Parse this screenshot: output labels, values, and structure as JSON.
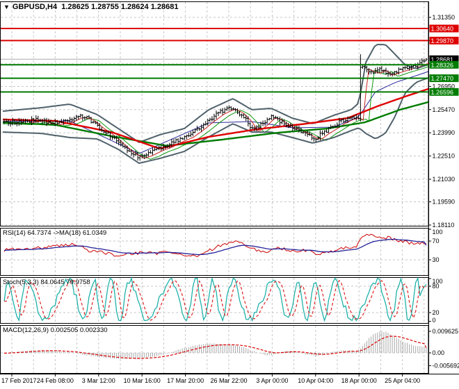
{
  "window": {
    "dropdown_icon": "▼",
    "symbol_period": "GBPUSD,H4",
    "ohlc_text": "1.28625 1.28755 1.28624 1.28681"
  },
  "colors": {
    "background": "#ffffff",
    "panel_border": "#000000",
    "grid": "#c6c6c6",
    "resistance": "#dd0000",
    "support": "#007c00",
    "bid_line": "#a8a8a8",
    "bid_label_bg": "#000000",
    "label_text": "#ffffff",
    "axis_text": "#000000",
    "candle": "#000000",
    "bollinger": "#4f616b",
    "bb_mid": "#2a2a9a",
    "fast_ma_red": "#cc2222",
    "fast_ma_green": "#119911",
    "ma_red": "#e00000",
    "ma_green": "#007c00",
    "rsi_line": "#cc0000",
    "rsi_ma": "#22229a",
    "stoch_k": "#20b2aa",
    "stoch_d": "#dd2222",
    "macd_hist": "#a8a8a8",
    "macd_signal": "#dd0000"
  },
  "chart_data": {
    "type": "candlestick",
    "title": "GBPUSD,H4",
    "current_ohlc": {
      "open": 1.28625,
      "high": 1.28755,
      "low": 1.28624,
      "close": 1.28681
    },
    "x_labels": [
      "17 Feb 2017",
      "24 Feb 08:00",
      "3 Mar 12:00",
      "10 Mar 16:00",
      "17 Mar 20:00",
      "26 Mar 22:00",
      "3 Apr 00:00",
      "10 Apr 04:00",
      "18 Apr 00:00",
      "25 Apr 04:00"
    ],
    "main": {
      "y_ticks": [
        {
          "price": 1.3135,
          "label": "1.31350"
        },
        {
          "price": 1.2987,
          "label": null
        },
        {
          "price": 1.2839,
          "label": null
        },
        {
          "price": 1.2695,
          "label": "1.26950"
        },
        {
          "price": 1.2547,
          "label": "1.25470"
        },
        {
          "price": 1.2399,
          "label": "1.23990"
        },
        {
          "price": 1.2251,
          "label": "1.22510"
        },
        {
          "price": 1.2103,
          "label": "1.21030"
        },
        {
          "price": 1.1959,
          "label": "1.19590"
        },
        {
          "price": 1.1811,
          "label": "1.18110"
        }
      ],
      "resistance_levels": [
        {
          "price": 1.3064,
          "label": "1.30640"
        },
        {
          "price": 1.2987,
          "label": "1.29870"
        }
      ],
      "support_levels": [
        {
          "price": 1.28326,
          "label": "1.28326"
        },
        {
          "price": 1.2747,
          "label": "1.27470"
        },
        {
          "price": 1.26596,
          "label": "1.26596"
        }
      ],
      "bid": {
        "price": 1.28681,
        "label": "1.28681"
      },
      "close_path": [
        [
          4,
          1.2471
        ],
        [
          30,
          1.2466
        ],
        [
          55,
          1.2484
        ],
        [
          75,
          1.2457
        ],
        [
          95,
          1.2471
        ],
        [
          112,
          1.2506
        ],
        [
          126,
          1.2493
        ],
        [
          140,
          1.244
        ],
        [
          155,
          1.2395
        ],
        [
          170,
          1.2338
        ],
        [
          185,
          1.228
        ],
        [
          200,
          1.2245
        ],
        [
          212,
          1.2263
        ],
        [
          226,
          1.2294
        ],
        [
          240,
          1.2316
        ],
        [
          255,
          1.2351
        ],
        [
          270,
          1.2378
        ],
        [
          285,
          1.2426
        ],
        [
          300,
          1.248
        ],
        [
          315,
          1.2528
        ],
        [
          330,
          1.2559
        ],
        [
          342,
          1.2533
        ],
        [
          354,
          1.248
        ],
        [
          364,
          1.2413
        ],
        [
          376,
          1.2453
        ],
        [
          388,
          1.2502
        ],
        [
          398,
          1.2489
        ],
        [
          408,
          1.2457
        ],
        [
          420,
          1.2431
        ],
        [
          432,
          1.2413
        ],
        [
          444,
          1.2382
        ],
        [
          454,
          1.2364
        ],
        [
          464,
          1.2399
        ],
        [
          476,
          1.2431
        ],
        [
          488,
          1.2466
        ],
        [
          500,
          1.2493
        ],
        [
          510,
          1.2502
        ],
        [
          516,
          1.248
        ],
        [
          520,
          1.2816
        ],
        [
          528,
          1.2803
        ],
        [
          538,
          1.2785
        ],
        [
          548,
          1.2807
        ],
        [
          556,
          1.2772
        ],
        [
          566,
          1.2789
        ],
        [
          576,
          1.2803
        ],
        [
          586,
          1.2816
        ],
        [
          596,
          1.2829
        ],
        [
          606,
          1.2847
        ],
        [
          616,
          1.28681
        ]
      ],
      "spike": {
        "x": 518,
        "open": 1.2489,
        "close": 1.2816,
        "high": 1.29,
        "low": 1.2471
      },
      "bb_upper": [
        [
          4,
          1.2537
        ],
        [
          60,
          1.2559
        ],
        [
          100,
          1.2582
        ],
        [
          140,
          1.2515
        ],
        [
          170,
          1.2426
        ],
        [
          200,
          1.2338
        ],
        [
          230,
          1.2387
        ],
        [
          265,
          1.2426
        ],
        [
          300,
          1.2546
        ],
        [
          335,
          1.2617
        ],
        [
          362,
          1.2546
        ],
        [
          390,
          1.2555
        ],
        [
          420,
          1.2493
        ],
        [
          450,
          1.2457
        ],
        [
          480,
          1.2511
        ],
        [
          505,
          1.2546
        ],
        [
          516,
          1.259
        ],
        [
          526,
          1.2847
        ],
        [
          540,
          1.2962
        ],
        [
          554,
          1.2962
        ],
        [
          568,
          1.29
        ],
        [
          582,
          1.2834
        ],
        [
          598,
          1.2807
        ],
        [
          616,
          1.2834
        ]
      ],
      "bb_lower": [
        [
          4,
          1.2404
        ],
        [
          60,
          1.2395
        ],
        [
          100,
          1.2369
        ],
        [
          140,
          1.236
        ],
        [
          170,
          1.2294
        ],
        [
          200,
          1.2205
        ],
        [
          230,
          1.2236
        ],
        [
          265,
          1.228
        ],
        [
          300,
          1.2373
        ],
        [
          335,
          1.2457
        ],
        [
          362,
          1.2404
        ],
        [
          390,
          1.2404
        ],
        [
          420,
          1.2369
        ],
        [
          450,
          1.2333
        ],
        [
          480,
          1.2369
        ],
        [
          505,
          1.2413
        ],
        [
          516,
          1.2431
        ],
        [
          526,
          1.2395
        ],
        [
          540,
          1.236
        ],
        [
          554,
          1.2395
        ],
        [
          568,
          1.2502
        ],
        [
          582,
          1.265
        ],
        [
          598,
          1.272
        ],
        [
          616,
          1.275
        ]
      ],
      "bb_mid": [
        [
          4,
          1.2471
        ],
        [
          100,
          1.2475
        ],
        [
          200,
          1.2267
        ],
        [
          300,
          1.2462
        ],
        [
          362,
          1.2471
        ],
        [
          420,
          1.2431
        ],
        [
          480,
          1.2435
        ],
        [
          516,
          1.2502
        ],
        [
          540,
          1.2661
        ],
        [
          568,
          1.2719
        ],
        [
          598,
          1.2763
        ],
        [
          616,
          1.279
        ]
      ],
      "ma_red": [
        [
          4,
          1.2484
        ],
        [
          80,
          1.2475
        ],
        [
          160,
          1.2404
        ],
        [
          230,
          1.2298
        ],
        [
          300,
          1.2373
        ],
        [
          370,
          1.2422
        ],
        [
          440,
          1.2457
        ],
        [
          500,
          1.2493
        ],
        [
          545,
          1.2572
        ],
        [
          585,
          1.2634
        ],
        [
          616,
          1.2679
        ]
      ],
      "ma_green": [
        [
          4,
          1.2466
        ],
        [
          80,
          1.2449
        ],
        [
          160,
          1.2378
        ],
        [
          240,
          1.2316
        ],
        [
          320,
          1.2356
        ],
        [
          400,
          1.24
        ],
        [
          470,
          1.2426
        ],
        [
          525,
          1.2466
        ],
        [
          575,
          1.2546
        ],
        [
          616,
          1.2595
        ]
      ]
    },
    "rsi": {
      "label": "RSI(14) 64.7374  ->MA(18) 61.0349",
      "value": 64.7374,
      "ma_value": 61.0349,
      "levels": [
        70,
        30
      ],
      "scale_labels": [
        {
          "v": 100,
          "label": "100"
        },
        {
          "v": 70,
          "label": "70"
        },
        {
          "v": 30,
          "label": "30"
        }
      ],
      "path": [
        [
          4,
          50
        ],
        [
          30,
          54
        ],
        [
          60,
          55
        ],
        [
          90,
          62
        ],
        [
          110,
          64
        ],
        [
          125,
          50
        ],
        [
          145,
          48
        ],
        [
          165,
          40
        ],
        [
          185,
          42
        ],
        [
          205,
          46
        ],
        [
          225,
          44
        ],
        [
          245,
          46
        ],
        [
          265,
          40
        ],
        [
          280,
          37
        ],
        [
          300,
          50
        ],
        [
          320,
          62
        ],
        [
          335,
          70
        ],
        [
          350,
          64
        ],
        [
          365,
          52
        ],
        [
          380,
          46
        ],
        [
          395,
          56
        ],
        [
          410,
          53
        ],
        [
          425,
          48
        ],
        [
          440,
          50
        ],
        [
          455,
          42
        ],
        [
          470,
          48
        ],
        [
          485,
          50
        ],
        [
          500,
          58
        ],
        [
          512,
          56
        ],
        [
          520,
          78
        ],
        [
          528,
          85
        ],
        [
          538,
          80
        ],
        [
          548,
          76
        ],
        [
          558,
          78
        ],
        [
          568,
          72
        ],
        [
          578,
          70
        ],
        [
          588,
          67
        ],
        [
          598,
          64
        ],
        [
          608,
          66
        ],
        [
          616,
          64.7
        ]
      ]
    },
    "stoch": {
      "label": "Stoch(5,3,3) 84.0645 79.9758",
      "k": 84.0645,
      "d": 79.9758,
      "levels": [
        80,
        20
      ],
      "scale_labels": [
        {
          "v": 100,
          "label": "100"
        },
        {
          "v": 80,
          "label": "80"
        },
        {
          "v": 20,
          "label": "20"
        },
        {
          "v": 0,
          "label": "0"
        }
      ]
    },
    "macd": {
      "label": "MACD(12,26,9) 0.002505 0.002330",
      "value": 0.002505,
      "signal": 0.00233,
      "scale_labels": [
        {
          "v": 0.009625,
          "label": "0.009625"
        },
        {
          "v": 0,
          "label": "0.00"
        },
        {
          "v": -0.005692,
          "label": "-0.005692"
        }
      ],
      "path": [
        [
          4,
          -0.0002
        ],
        [
          20,
          0.0004
        ],
        [
          40,
          0.001
        ],
        [
          60,
          0.0013
        ],
        [
          80,
          0.0009
        ],
        [
          100,
          0.0002
        ],
        [
          120,
          -0.0008
        ],
        [
          140,
          -0.0018
        ],
        [
          160,
          -0.0024
        ],
        [
          180,
          -0.0028
        ],
        [
          200,
          -0.0026
        ],
        [
          215,
          -0.002
        ],
        [
          230,
          -0.0012
        ],
        [
          245,
          0.0002
        ],
        [
          260,
          0.0018
        ],
        [
          275,
          0.003
        ],
        [
          290,
          0.0038
        ],
        [
          305,
          0.0042
        ],
        [
          315,
          0.004
        ],
        [
          330,
          0.0036
        ],
        [
          345,
          0.003
        ],
        [
          355,
          0.002
        ],
        [
          365,
          0.0008
        ],
        [
          375,
          -0.0004
        ],
        [
          385,
          -0.0012
        ],
        [
          395,
          -0.0006
        ],
        [
          405,
          0.0004
        ],
        [
          415,
          0.001
        ],
        [
          425,
          0.0006
        ],
        [
          435,
          -0.0002
        ],
        [
          445,
          -0.001
        ],
        [
          455,
          -0.0014
        ],
        [
          465,
          -0.0008
        ],
        [
          475,
          0.0002
        ],
        [
          485,
          0.0008
        ],
        [
          495,
          0.0012
        ],
        [
          505,
          0.001
        ],
        [
          512,
          0.0008
        ],
        [
          518,
          0.002
        ],
        [
          525,
          0.0045
        ],
        [
          532,
          0.007
        ],
        [
          540,
          0.0088
        ],
        [
          548,
          0.0096
        ],
        [
          556,
          0.0092
        ],
        [
          564,
          0.008
        ],
        [
          572,
          0.0065
        ],
        [
          580,
          0.005
        ],
        [
          588,
          0.004
        ],
        [
          596,
          0.0033
        ],
        [
          604,
          0.0028
        ],
        [
          616,
          0.0025
        ]
      ]
    }
  }
}
